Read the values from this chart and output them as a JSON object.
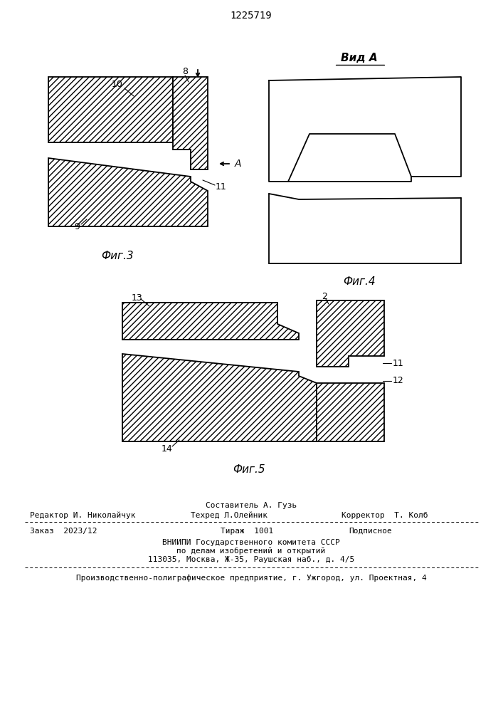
{
  "title": "1225719",
  "fig3_label": "Фиг.3",
  "fig4_label": "Фиг.4",
  "fig5_label": "Фиг.5",
  "vid_a_label": "Вид А",
  "bg_color": "#ffffff",
  "line_color": "#000000",
  "footer_sestavitel": "Составитель А. Гузь",
  "footer_editor": "Редактор И. Николайчук",
  "footer_tekhred": "Техред Л.Олейник",
  "footer_korrektor": "Корректор  Т. Колб",
  "footer_zakaz": "Заказ  2023/12",
  "footer_tirazh": "Тираж  1001",
  "footer_podpisnoe": "Подписное",
  "footer_vn1": "ВНИИПИ Государственного комитета СССР",
  "footer_vn2": "по делам изобретений и открытий",
  "footer_vn3": "113035, Москва, Ж-35, Раушская наб., д. 4/5",
  "footer_prod": "Производственно-полиграфическое предприятие, г. Ужгород, ул. Проектная, 4"
}
